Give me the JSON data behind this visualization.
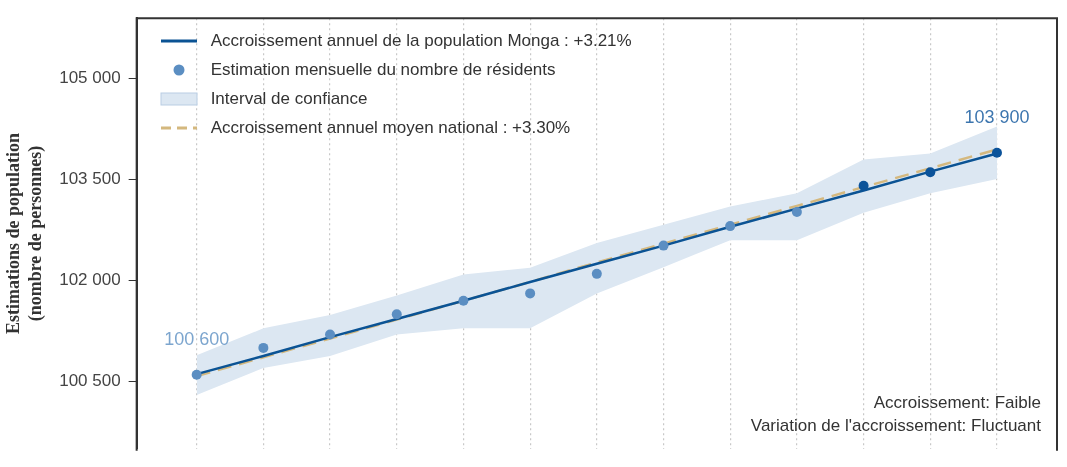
{
  "chart_data": {
    "type": "line",
    "ylabel": "Estimations de population\n(nombre de personnes)",
    "categories": [
      null,
      null,
      null,
      null,
      null,
      null,
      null,
      null,
      null,
      null,
      null,
      null,
      null
    ],
    "ylim": [
      99500,
      105900
    ],
    "yticks": [
      {
        "value": 100500,
        "label": "100 500"
      },
      {
        "value": 102000,
        "label": "102 000"
      },
      {
        "value": 103500,
        "label": "103 500"
      },
      {
        "value": 105000,
        "label": "105 000"
      }
    ],
    "grid": "x",
    "legend": "top left",
    "series": [
      {
        "name": "Accroissement annuel de la population Monga : +3.21%",
        "color": "#0b5394",
        "line_style": "solid",
        "marker": "none",
        "values": [
          100610,
          100880,
          101160,
          101430,
          101700,
          101980,
          102250,
          102520,
          102800,
          103070,
          103340,
          103620,
          103890
        ]
      },
      {
        "name": "Estimation mensuelle du nombre de résidents",
        "type": "scatter",
        "marker": "circle",
        "color": "#5b8ec2",
        "colors": [
          "#5b8ec2",
          "#5b8ec2",
          "#5b8ec2",
          "#5b8ec2",
          "#5b8ec2",
          "#5b8ec2",
          "#5b8ec2",
          "#5b8ec2",
          "#5b8ec2",
          "#5b8ec2",
          "#0b539a",
          "#0b539a",
          "#0b539a"
        ],
        "values": [
          100600,
          101000,
          101200,
          101500,
          101700,
          101810,
          102100,
          102520,
          102810,
          103020,
          103410,
          103610,
          103900
        ],
        "value_labels": [
          "100 600",
          null,
          null,
          null,
          null,
          null,
          null,
          null,
          null,
          null,
          null,
          null,
          "103 900"
        ]
      },
      {
        "name": "Interval de confiance",
        "type": "area",
        "color": "#dce7f2",
        "values": [
          null,
          null,
          null,
          null,
          null,
          null,
          null,
          null,
          null,
          null,
          null,
          null,
          null
        ],
        "lower": [
          100300,
          100700,
          100880,
          101200,
          101290,
          101290,
          101810,
          102200,
          102600,
          102600,
          103010,
          103300,
          103510
        ],
        "upper": [
          100890,
          101290,
          101490,
          101780,
          102090,
          102190,
          102560,
          102830,
          103100,
          103300,
          103800,
          103890,
          104290
        ]
      },
      {
        "name": "Accroissement annuel moyen national : +3.30%",
        "type": "line",
        "color": "#d4b87e",
        "line_style": "dashed",
        "marker": "none",
        "values": [
          100580,
          100860,
          101140,
          101420,
          101700,
          101980,
          102270,
          102550,
          102830,
          103110,
          103390,
          103670,
          103950
        ]
      }
    ],
    "annotations": [
      "Accroissement: Faible",
      "Variation de l'accroissement: Fluctuant"
    ]
  }
}
